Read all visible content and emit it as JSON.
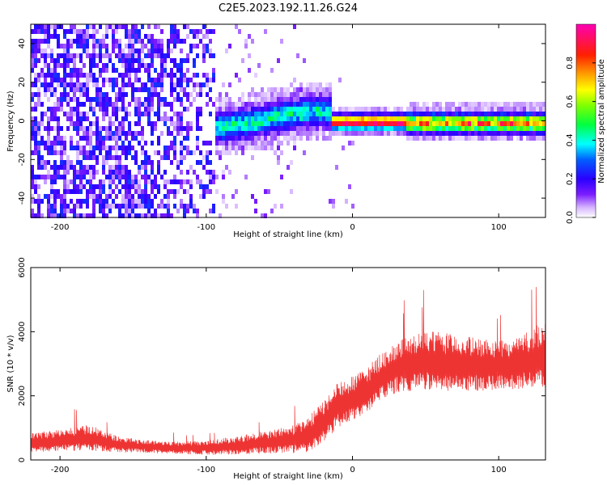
{
  "title": "C2E5.2023.192.11.26.G24",
  "chart_data": [
    {
      "type": "heatmap",
      "xlabel": "Height of straight line (km)",
      "ylabel": "Frequency (Hz)",
      "xlim": [
        -220,
        132
      ],
      "ylim": [
        -50,
        50
      ],
      "xticks": [
        -200,
        -100,
        0,
        100
      ],
      "yticks": [
        -40,
        -20,
        0,
        20,
        40
      ],
      "colorbar": {
        "label": "Normalized spectral amplitude",
        "ticks": [
          "0.0",
          "0.2",
          "0.4",
          "0.6",
          "0.8"
        ],
        "range": [
          0,
          1
        ],
        "colormap": [
          "#ffffff",
          "#e8d2ff",
          "#9a4dff",
          "#5a00ff",
          "#0000ff",
          "#00ffff",
          "#00ff00",
          "#ffff00",
          "#ff7f00",
          "#ff0000",
          "#ff00b4"
        ]
      },
      "features": [
        {
          "x_range": [
            -220,
            -100
          ],
          "description_level": "broadband low"
        },
        {
          "x_range": [
            -95,
            -15
          ],
          "center_hz": 2,
          "level": 0.4
        },
        {
          "x_range": [
            -10,
            35
          ],
          "center_hz": 0,
          "level": 0.9
        },
        {
          "x_range": [
            35,
            132
          ],
          "center_hz": 0,
          "level": 0.75
        }
      ]
    },
    {
      "type": "line",
      "xlabel": "Height of straight line (km)",
      "ylabel": "SNR (10 * v/v)",
      "xlim": [
        -220,
        132
      ],
      "ylim": [
        0,
        6000
      ],
      "xticks": [
        -200,
        -100,
        0,
        100
      ],
      "yticks": [
        0,
        2000,
        4000,
        6000
      ],
      "color": "#ee3333",
      "series": [
        {
          "x": [
            -220,
            -200,
            -180,
            -160,
            -140,
            -120,
            -100,
            -80,
            -60,
            -40,
            -30,
            -20,
            -10,
            0,
            10,
            20,
            30,
            40,
            50,
            60,
            70,
            80,
            90,
            100,
            110,
            120,
            132
          ],
          "y": [
            550,
            600,
            700,
            480,
            420,
            380,
            380,
            450,
            550,
            650,
            800,
            1200,
            1700,
            1900,
            2200,
            2600,
            2900,
            3000,
            3100,
            3050,
            3000,
            3000,
            2950,
            2950,
            3000,
            3100,
            3300
          ],
          "spread": [
            300,
            350,
            400,
            250,
            200,
            200,
            220,
            300,
            350,
            450,
            550,
            650,
            700,
            700,
            700,
            750,
            800,
            850,
            900,
            950,
            900,
            850,
            800,
            800,
            800,
            900,
            1100
          ]
        }
      ]
    }
  ]
}
